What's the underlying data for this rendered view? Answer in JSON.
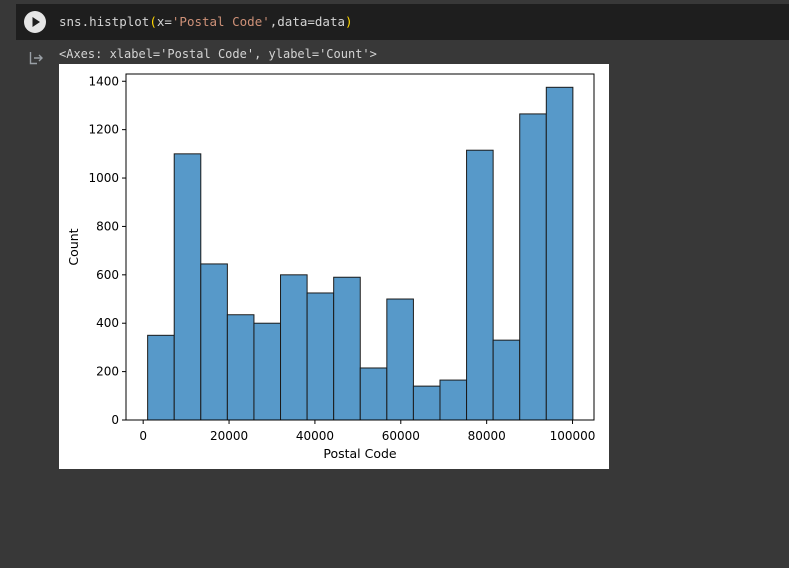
{
  "cell": {
    "code_fn": "sns.histplot",
    "code_open": "(",
    "code_arg_prefix": "x=",
    "code_str": "'Postal Code'",
    "code_arg_suffix": ",data=data",
    "code_close": ")",
    "run_icon": "play-icon"
  },
  "output": {
    "icon": "output-arrow-icon",
    "repr": "<Axes: xlabel='Postal Code', ylabel='Count'>"
  },
  "colors": {
    "bar_fill": "#5799c9",
    "bar_edge": "#1a1a1a"
  },
  "chart_data": {
    "type": "bar",
    "xlabel": "Postal Code",
    "ylabel": "Count",
    "xlim": [
      -4000,
      105000
    ],
    "ylim": [
      0,
      1430
    ],
    "xticks": [
      0,
      20000,
      40000,
      60000,
      80000,
      100000
    ],
    "xtick_labels": [
      "0",
      "20000",
      "40000",
      "60000",
      "80000",
      "100000"
    ],
    "yticks": [
      0,
      200,
      400,
      600,
      800,
      1000,
      1200,
      1400
    ],
    "ytick_labels": [
      "0",
      "200",
      "400",
      "600",
      "800",
      "1000",
      "1200",
      "1400"
    ],
    "bin_edges": [
      1040,
      7230,
      13420,
      19610,
      25800,
      31990,
      38180,
      44370,
      50560,
      56750,
      62940,
      69130,
      75320,
      81510,
      87700,
      93890,
      100080
    ],
    "counts": [
      350,
      1100,
      645,
      435,
      400,
      600,
      525,
      590,
      215,
      500,
      140,
      165,
      1115,
      330,
      1265,
      1375
    ]
  }
}
